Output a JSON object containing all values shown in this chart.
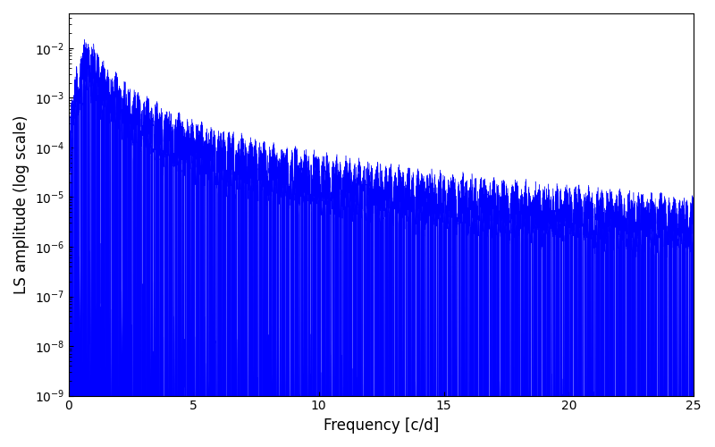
{
  "title": "",
  "xlabel": "Frequency [c/d]",
  "ylabel": "LS amplitude (log scale)",
  "line_color": "blue",
  "xlim": [
    0,
    25
  ],
  "ylim": [
    1e-09,
    0.05
  ],
  "yscale": "log",
  "figsize": [
    8.0,
    5.0
  ],
  "dpi": 100,
  "seed": 42,
  "n_points": 8000,
  "freq_max": 25.0,
  "background_color": "#ffffff"
}
